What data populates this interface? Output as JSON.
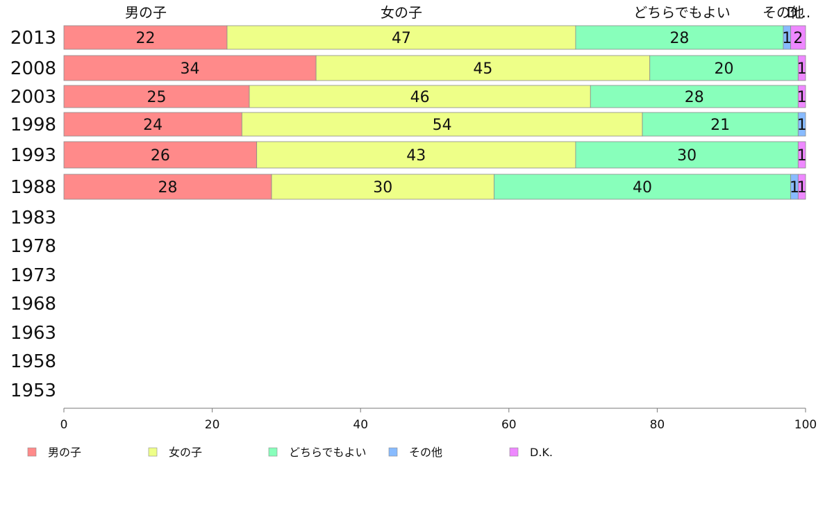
{
  "chart_data": {
    "type": "bar",
    "orientation": "horizontal",
    "stacked": true,
    "title": "",
    "xlabel": "",
    "ylabel": "",
    "xlim": [
      0,
      100
    ],
    "xticks": [
      0,
      20,
      40,
      60,
      80,
      100
    ],
    "grid": false,
    "legend_position": "bottom",
    "categories": [
      "2013",
      "2008",
      "2003",
      "1998",
      "1993",
      "1988",
      "1983",
      "1978",
      "1973",
      "1968",
      "1963",
      "1958",
      "1953"
    ],
    "top_labels": [
      "男の子",
      "女の子",
      "どちらでもよい",
      "その他",
      "D..."
    ],
    "series": [
      {
        "name": "男の子",
        "color": "#ff8a8a",
        "values": [
          22,
          34,
          25,
          24,
          26,
          28,
          null,
          null,
          null,
          null,
          null,
          null,
          null
        ],
        "labels": [
          "22",
          "34",
          "25",
          "24",
          "26",
          "28"
        ]
      },
      {
        "name": "女の子",
        "color": "#eeff88",
        "values": [
          47,
          45,
          46,
          54,
          43,
          30,
          null,
          null,
          null,
          null,
          null,
          null,
          null
        ],
        "labels": [
          "47",
          "45",
          "46",
          "54",
          "43",
          "30"
        ]
      },
      {
        "name": "どちらでもよい",
        "color": "#88ffbb",
        "values": [
          28,
          20,
          28,
          21,
          30,
          40,
          null,
          null,
          null,
          null,
          null,
          null,
          null
        ],
        "labels": [
          "28",
          "20",
          "28",
          "21",
          "30",
          "40"
        ]
      },
      {
        "name": "その他",
        "color": "#88bbff",
        "values": [
          1,
          0,
          0,
          1,
          0,
          1,
          null,
          null,
          null,
          null,
          null,
          null,
          null
        ],
        "labels": [
          "1",
          "",
          "",
          "1",
          "",
          "1"
        ]
      },
      {
        "name": "D.K.",
        "color": "#ee88ff",
        "values": [
          2,
          1,
          1,
          0,
          1,
          1,
          null,
          null,
          null,
          null,
          null,
          null,
          null
        ],
        "labels": [
          "2",
          "1",
          "1",
          "",
          "1",
          "1"
        ]
      }
    ]
  }
}
